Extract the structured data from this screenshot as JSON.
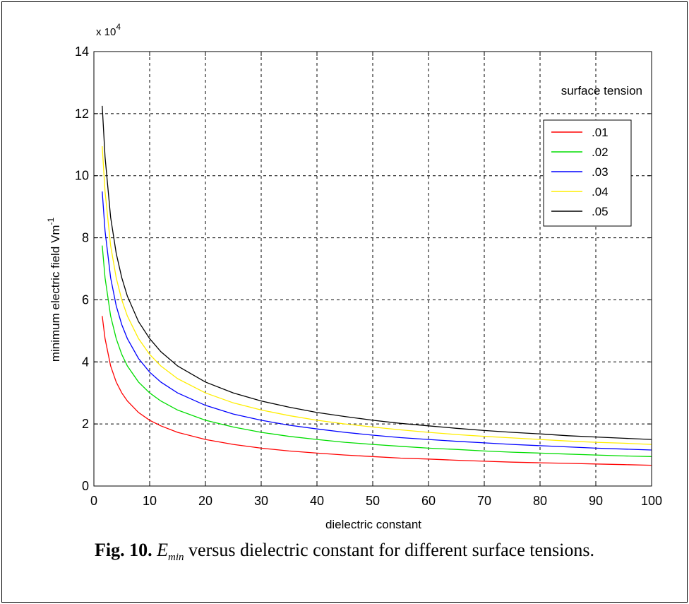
{
  "chart_data": {
    "type": "line",
    "xlabel": "dielectric constant",
    "ylabel_main": "minimum electric field  Vm",
    "ylabel_sup": "-1",
    "y_exponent_base": "x 10",
    "y_exponent_power": "4",
    "xlim": [
      0,
      100
    ],
    "ylim": [
      0,
      140000
    ],
    "xticks": [
      "0",
      "10",
      "20",
      "30",
      "40",
      "50",
      "60",
      "70",
      "80",
      "90",
      "100"
    ],
    "yticks": [
      "0",
      "2",
      "4",
      "6",
      "8",
      "10",
      "12",
      "14"
    ],
    "grid": true,
    "legend_title": "surface tension",
    "legend_position": "top-right",
    "x": [
      1.5,
      2,
      3,
      4,
      5,
      6,
      8,
      10,
      12,
      15,
      20,
      25,
      30,
      35,
      40,
      45,
      50,
      55,
      60,
      65,
      70,
      75,
      80,
      85,
      90,
      95,
      100
    ],
    "series": [
      {
        "name": ".01",
        "color": "#ff0000",
        "values": [
          54800,
          47500,
          38700,
          33500,
          30000,
          27400,
          23700,
          21200,
          19400,
          17300,
          15000,
          13400,
          12200,
          11300,
          10600,
          10000,
          9500,
          9000,
          8700,
          8300,
          8000,
          7700,
          7500,
          7300,
          7100,
          6900,
          6700
        ]
      },
      {
        "name": ".02",
        "color": "#00dd00",
        "values": [
          77500,
          67100,
          54800,
          47500,
          42400,
          38700,
          33500,
          30000,
          27400,
          24500,
          21200,
          19000,
          17300,
          16000,
          15000,
          14100,
          13400,
          12800,
          12200,
          11800,
          11300,
          10900,
          10600,
          10300,
          10000,
          9700,
          9500
        ]
      },
      {
        "name": ".03",
        "color": "#0000ff",
        "values": [
          94900,
          82200,
          67100,
          58100,
          52000,
          47500,
          41100,
          36700,
          33500,
          30000,
          26000,
          23200,
          21200,
          19600,
          18400,
          17300,
          16400,
          15600,
          15000,
          14400,
          13900,
          13400,
          13000,
          12600,
          12200,
          11900,
          11600
        ]
      },
      {
        "name": ".04",
        "color": "#ffee00",
        "values": [
          109500,
          94900,
          77500,
          67100,
          60000,
          54800,
          47500,
          42400,
          38700,
          34600,
          30000,
          26800,
          24500,
          22700,
          21200,
          20000,
          19000,
          18100,
          17300,
          16600,
          16000,
          15500,
          15000,
          14500,
          14100,
          13800,
          13400
        ]
      },
      {
        "name": ".05",
        "color": "#000000",
        "values": [
          122500,
          106100,
          86600,
          75000,
          67100,
          61200,
          53000,
          47500,
          43300,
          38700,
          33500,
          30000,
          27400,
          25400,
          23700,
          22400,
          21200,
          20200,
          19400,
          18600,
          17900,
          17300,
          16800,
          16200,
          15800,
          15400,
          15000
        ]
      }
    ]
  },
  "caption": {
    "fig_label": "Fig. 10.",
    "e_symbol": "E",
    "e_subscript": "min",
    "text": " versus dielectric constant for different surface tensions."
  }
}
